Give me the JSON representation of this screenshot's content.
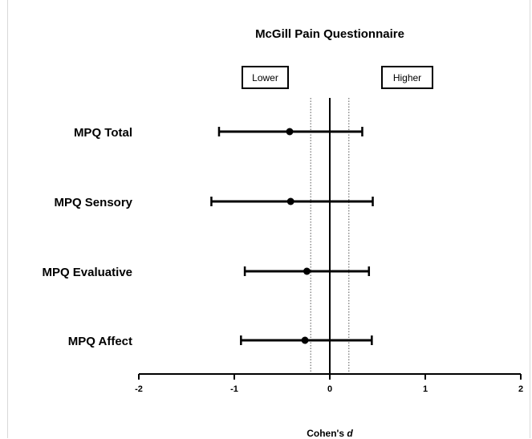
{
  "chart_data": {
    "type": "forest",
    "title": "McGill Pain Questionnaire",
    "xlabel_main": "Cohen's ",
    "xlabel_italic": "d",
    "xlim": [
      -2,
      2
    ],
    "xticks": [
      "-2",
      "-1",
      "0",
      "1",
      "2"
    ],
    "reference_lines": {
      "solid": 0,
      "dotted": [
        -0.2,
        0.2
      ]
    },
    "direction_labels": {
      "left": "Lower",
      "right": "Higher"
    },
    "rows": [
      {
        "label": "MPQ Total",
        "estimate": -0.42,
        "ci_low": -1.16,
        "ci_high": 0.34
      },
      {
        "label": "MPQ Sensory",
        "estimate": -0.41,
        "ci_low": -1.24,
        "ci_high": 0.45
      },
      {
        "label": "MPQ Evaluative",
        "estimate": -0.24,
        "ci_low": -0.89,
        "ci_high": 0.41
      },
      {
        "label": "MPQ Affect",
        "estimate": -0.26,
        "ci_low": -0.93,
        "ci_high": 0.44
      }
    ]
  }
}
